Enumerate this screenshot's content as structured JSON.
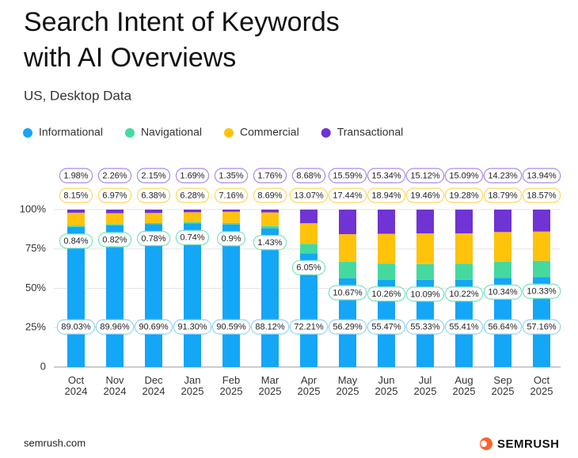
{
  "chart_data": {
    "type": "stacked-bar",
    "title": "Search Intent of Keywords with AI Overviews",
    "subtitle": "US, Desktop Data",
    "categories": [
      "Oct 2024",
      "Nov 2024",
      "Dec 2024",
      "Jan 2025",
      "Feb 2025",
      "Mar 2025",
      "Apr 2025",
      "May 2025",
      "Jun 2025",
      "Jul 2025",
      "Aug 2025",
      "Sep 2025",
      "Oct 2025"
    ],
    "series": [
      {
        "name": "Informational",
        "color": "#14a6f7",
        "values": [
          89.03,
          89.96,
          90.69,
          91.3,
          90.59,
          88.12,
          72.21,
          56.29,
          55.47,
          55.33,
          55.41,
          56.64,
          57.16
        ],
        "value_labels": [
          "89.03%",
          "89.96%",
          "90.69%",
          "91.30%",
          "90.59%",
          "88.12%",
          "72.21%",
          "56.29%",
          "55.47%",
          "55.33%",
          "55.41%",
          "56.64%",
          "57.16%"
        ]
      },
      {
        "name": "Navigational",
        "color": "#45d9a0",
        "values": [
          0.84,
          0.82,
          0.78,
          0.74,
          0.9,
          1.43,
          6.05,
          10.67,
          10.26,
          10.09,
          10.22,
          10.34,
          10.33
        ],
        "value_labels": [
          "0.84%",
          "0.82%",
          "0.78%",
          "0.74%",
          "0.9%",
          "1.43%",
          "6.05%",
          "10.67%",
          "10.26%",
          "10.09%",
          "10.22%",
          "10.34%",
          "10.33%"
        ]
      },
      {
        "name": "Commercial",
        "color": "#ffc30b",
        "values": [
          8.15,
          6.97,
          6.38,
          6.28,
          7.16,
          8.69,
          13.07,
          17.44,
          18.94,
          19.46,
          19.28,
          18.79,
          18.57
        ],
        "value_labels": [
          "8.15%",
          "6.97%",
          "6.38%",
          "6.28%",
          "7.16%",
          "8.69%",
          "13.07%",
          "17.44%",
          "18.94%",
          "19.46%",
          "19.28%",
          "18.79%",
          "18.57%"
        ]
      },
      {
        "name": "Transactional",
        "color": "#7033d4",
        "values": [
          1.98,
          2.26,
          2.15,
          1.69,
          1.35,
          1.76,
          8.68,
          15.59,
          15.34,
          15.12,
          15.09,
          14.23,
          13.94
        ],
        "value_labels": [
          "1.98%",
          "2.26%",
          "2.15%",
          "1.69%",
          "1.35%",
          "1.76%",
          "8.68%",
          "15.59%",
          "15.34%",
          "15.12%",
          "15.09%",
          "14.23%",
          "13.94%"
        ]
      }
    ],
    "ylim": [
      0,
      100
    ],
    "yticks": [
      0,
      {
        "value": 25,
        "label": "25%"
      },
      {
        "value": 50,
        "label": "50%"
      },
      {
        "value": 75,
        "label": "75%"
      },
      {
        "value": 100,
        "label": "100%"
      }
    ],
    "grid": true,
    "legend": "top-left"
  },
  "footer": {
    "source": "semrush.com",
    "brand": "SEMRUSH"
  }
}
